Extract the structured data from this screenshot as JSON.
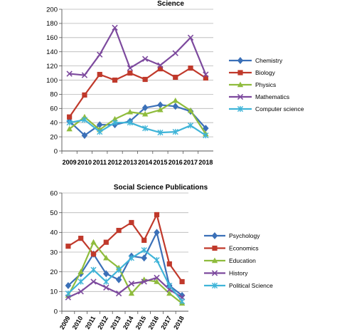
{
  "chart_data": [
    {
      "type": "line",
      "title": "Science",
      "xlabel": "",
      "ylabel": "",
      "x": [
        "2009",
        "2010",
        "2011",
        "2012",
        "2013",
        "2014",
        "2015",
        "2016",
        "2017",
        "2018"
      ],
      "ylim": [
        0,
        200
      ],
      "yticks": [
        "0",
        "20",
        "40",
        "60",
        "80",
        "100",
        "120",
        "140",
        "160",
        "180",
        "200"
      ],
      "grid": true,
      "legend": "right",
      "series": [
        {
          "name": "Chemistry",
          "color": "#3b70b8",
          "marker": "diamond",
          "values": [
            42,
            22,
            37,
            37,
            42,
            61,
            65,
            63,
            56,
            32
          ]
        },
        {
          "name": "Biology",
          "color": "#c0392b",
          "marker": "square",
          "values": [
            48,
            79,
            108,
            100,
            110,
            101,
            116,
            104,
            117,
            103
          ]
        },
        {
          "name": "Physics",
          "color": "#8fbc3d",
          "marker": "triangle",
          "values": [
            31,
            48,
            30,
            45,
            55,
            52,
            58,
            71,
            57,
            24
          ]
        },
        {
          "name": "Mathematics",
          "color": "#7d4a9e",
          "marker": "x",
          "values": [
            109,
            107,
            136,
            174,
            117,
            130,
            121,
            138,
            160,
            108
          ]
        },
        {
          "name": "Computer science",
          "color": "#3fb4d8",
          "marker": "star",
          "values": [
            40,
            44,
            27,
            40,
            40,
            32,
            26,
            27,
            36,
            22
          ]
        }
      ]
    },
    {
      "type": "line",
      "title": "Social Science Publications",
      "xlabel": "",
      "ylabel": "",
      "x": [
        "2009",
        "2010",
        "2011",
        "2012",
        "2013",
        "2014",
        "2015",
        "2016",
        "2017",
        "2018"
      ],
      "ylim": [
        0,
        60
      ],
      "yticks": [
        "0",
        "10",
        "20",
        "30",
        "40",
        "50",
        "60"
      ],
      "grid": true,
      "legend": "right",
      "series": [
        {
          "name": "Psychology",
          "color": "#3b70b8",
          "marker": "diamond",
          "values": [
            13,
            19,
            29,
            19,
            16,
            28,
            27,
            40,
            13,
            8
          ]
        },
        {
          "name": "Economics",
          "color": "#c0392b",
          "marker": "square",
          "values": [
            33,
            37,
            29,
            35,
            41,
            45,
            36,
            49,
            24,
            15
          ]
        },
        {
          "name": "Education",
          "color": "#8fbc3d",
          "marker": "triangle",
          "values": [
            8,
            20,
            35,
            27,
            22,
            9,
            16,
            15,
            9,
            4
          ]
        },
        {
          "name": "History",
          "color": "#7d4a9e",
          "marker": "x",
          "values": [
            7,
            10,
            15,
            12,
            9,
            14,
            15,
            17,
            11,
            7
          ]
        },
        {
          "name": "Political Science",
          "color": "#3fb4d8",
          "marker": "star",
          "values": [
            9,
            15,
            21,
            15,
            21,
            27,
            31,
            26,
            13,
            5
          ]
        }
      ]
    }
  ]
}
